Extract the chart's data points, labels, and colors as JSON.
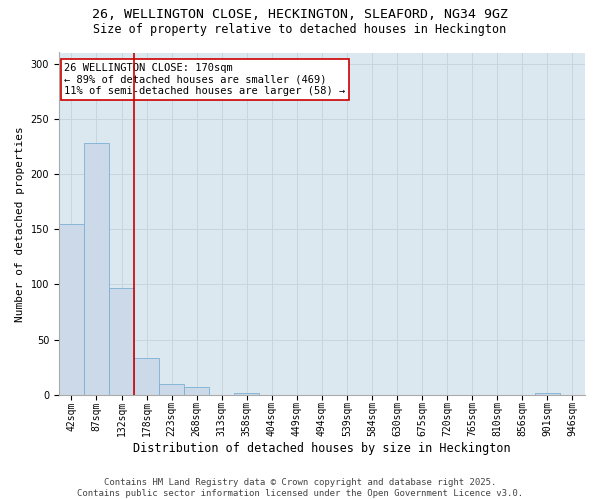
{
  "title_line1": "26, WELLINGTON CLOSE, HECKINGTON, SLEAFORD, NG34 9GZ",
  "title_line2": "Size of property relative to detached houses in Heckington",
  "xlabel": "Distribution of detached houses by size in Heckington",
  "ylabel": "Number of detached properties",
  "bar_values": [
    155,
    228,
    97,
    33,
    10,
    7,
    0,
    2,
    0,
    0,
    0,
    0,
    0,
    0,
    0,
    0,
    0,
    0,
    0,
    2,
    0
  ],
  "bar_labels": [
    "42sqm",
    "87sqm",
    "132sqm",
    "178sqm",
    "223sqm",
    "268sqm",
    "313sqm",
    "358sqm",
    "404sqm",
    "449sqm",
    "494sqm",
    "539sqm",
    "584sqm",
    "630sqm",
    "675sqm",
    "720sqm",
    "765sqm",
    "810sqm",
    "856sqm",
    "901sqm",
    "946sqm"
  ],
  "bar_color": "#ccd9e8",
  "bar_edge_color": "#7bafd4",
  "vline_x": 2.5,
  "vline_color": "#cc0000",
  "annotation_text": "26 WELLINGTON CLOSE: 170sqm\n← 89% of detached houses are smaller (469)\n11% of semi-detached houses are larger (58) →",
  "annotation_box_color": "white",
  "annotation_edge_color": "#cc0000",
  "annotation_fontsize": 7.5,
  "ylim": [
    0,
    310
  ],
  "yticks": [
    0,
    50,
    100,
    150,
    200,
    250,
    300
  ],
  "grid_color": "#c8d4e0",
  "bg_color": "#dce8f0",
  "footer_text": "Contains HM Land Registry data © Crown copyright and database right 2025.\nContains public sector information licensed under the Open Government Licence v3.0.",
  "title_fontsize": 9.5,
  "subtitle_fontsize": 8.5,
  "xlabel_fontsize": 8.5,
  "ylabel_fontsize": 8,
  "tick_fontsize": 7,
  "footer_fontsize": 6.5
}
